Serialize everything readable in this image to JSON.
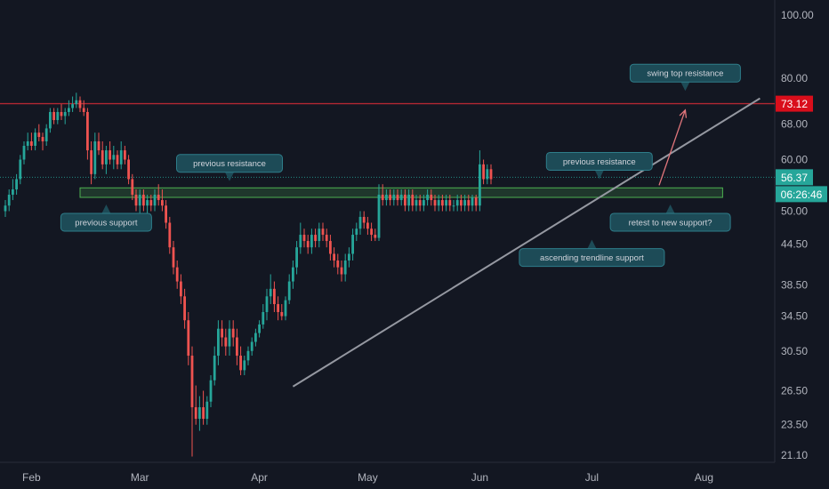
{
  "chart_data": {
    "type": "candlestick",
    "y_scale": "log",
    "grid": false,
    "y_axis_ticks": [
      "100.00",
      "80.00",
      "68.00",
      "60.00",
      "50.00",
      "44.50",
      "38.50",
      "34.50",
      "30.50",
      "26.50",
      "23.50",
      "21.10"
    ],
    "x_axis_ticks": [
      "Feb",
      "Mar",
      "Apr",
      "May",
      "Jun",
      "Jul",
      "Aug"
    ],
    "tags": {
      "resistance_price": "73.12",
      "last_price": "56.37",
      "countdown": "06:26:46"
    },
    "levels": {
      "resistance": 73.12,
      "last_price": 56.37,
      "support_zone_low": 52.5,
      "support_zone_high": 54.3
    },
    "trendline": {
      "from": [
        "2021-03-19",
        26.9
      ],
      "to": [
        "2021-07-22",
        74.5
      ]
    },
    "arrow": {
      "from": [
        "2021-06-25",
        54.8
      ],
      "to": [
        "2021-07-02",
        71.5
      ]
    },
    "annotations": [
      {
        "text": "swing top resistance",
        "date": "2021-07-02",
        "price": 76.5,
        "side": "above"
      },
      {
        "text": "previous resistance",
        "date": "2021-03-02",
        "price": 55.6,
        "side": "above"
      },
      {
        "text": "previous resistance",
        "date": "2021-06-09",
        "price": 56.0,
        "side": "above"
      },
      {
        "text": "previous support",
        "date": "2021-01-28",
        "price": 51.2,
        "side": "below"
      },
      {
        "text": "retest to new support?",
        "date": "2021-06-28",
        "price": 51.2,
        "side": "below"
      },
      {
        "text": "ascending trendline support",
        "date": "2021-06-07",
        "price": 45.2,
        "side": "below"
      }
    ],
    "ohlc": [
      [
        "2021-01-01",
        50,
        52,
        49,
        51
      ],
      [
        "2021-01-02",
        51,
        54,
        50,
        53
      ],
      [
        "2021-01-03",
        53,
        56,
        52,
        54
      ],
      [
        "2021-01-04",
        54,
        57,
        53,
        56
      ],
      [
        "2021-01-05",
        56,
        61,
        55,
        60
      ],
      [
        "2021-01-06",
        60,
        64,
        59,
        63
      ],
      [
        "2021-01-07",
        63,
        66,
        62,
        64
      ],
      [
        "2021-01-08",
        64,
        66,
        62,
        63
      ],
      [
        "2021-01-09",
        63,
        67,
        62,
        66
      ],
      [
        "2021-01-10",
        66,
        68,
        64,
        65
      ],
      [
        "2021-01-11",
        65,
        66,
        62,
        64
      ],
      [
        "2021-01-12",
        64,
        68,
        63,
        67
      ],
      [
        "2021-01-13",
        67,
        72,
        66,
        71
      ],
      [
        "2021-01-14",
        71,
        72,
        68,
        69
      ],
      [
        "2021-01-15",
        69,
        72,
        68,
        71
      ],
      [
        "2021-01-16",
        71,
        73,
        69,
        70
      ],
      [
        "2021-01-17",
        70,
        72,
        68,
        71
      ],
      [
        "2021-01-18",
        71,
        74,
        70,
        72
      ],
      [
        "2021-01-19",
        72,
        75,
        71,
        73
      ],
      [
        "2021-01-20",
        73,
        76,
        72,
        74
      ],
      [
        "2021-01-21",
        74,
        75,
        71,
        72
      ],
      [
        "2021-01-22",
        72,
        74,
        70,
        71
      ],
      [
        "2021-01-23",
        71,
        72,
        60,
        62
      ],
      [
        "2021-01-24",
        62,
        64,
        55,
        57
      ],
      [
        "2021-01-25",
        57,
        66,
        56,
        64
      ],
      [
        "2021-01-26",
        64,
        66,
        61,
        62
      ],
      [
        "2021-01-27",
        62,
        64,
        58,
        59
      ],
      [
        "2021-01-28",
        59,
        63,
        57,
        62
      ],
      [
        "2021-01-29",
        62,
        64,
        59,
        60
      ],
      [
        "2021-01-30",
        60,
        63,
        58,
        61
      ],
      [
        "2021-01-31",
        61,
        62,
        58,
        59
      ],
      [
        "2021-02-01",
        59,
        64,
        58,
        62
      ],
      [
        "2021-02-02",
        62,
        63,
        59,
        60
      ],
      [
        "2021-02-03",
        60,
        61,
        55,
        56
      ],
      [
        "2021-02-04",
        56,
        57,
        52,
        53
      ],
      [
        "2021-02-05",
        53,
        54,
        50,
        51
      ],
      [
        "2021-02-06",
        51,
        54,
        49,
        53
      ],
      [
        "2021-02-07",
        53,
        54,
        50,
        51
      ],
      [
        "2021-02-08",
        51,
        53,
        49,
        52
      ],
      [
        "2021-02-09",
        52,
        53,
        50,
        51
      ],
      [
        "2021-02-10",
        51,
        54,
        50,
        53
      ],
      [
        "2021-02-11",
        53,
        55,
        51,
        52
      ],
      [
        "2021-02-12",
        52,
        54,
        50,
        51
      ],
      [
        "2021-02-13",
        51,
        52,
        47,
        48
      ],
      [
        "2021-02-14",
        48,
        49,
        43,
        44
      ],
      [
        "2021-02-15",
        44,
        45,
        40,
        41
      ],
      [
        "2021-02-16",
        41,
        42,
        38,
        39
      ],
      [
        "2021-02-17",
        39,
        40,
        36,
        37
      ],
      [
        "2021-02-18",
        37,
        38,
        33,
        34
      ],
      [
        "2021-02-19",
        34,
        35,
        29,
        30
      ],
      [
        "2021-02-20",
        30,
        31,
        21,
        25
      ],
      [
        "2021-02-21",
        25,
        27,
        23.5,
        24
      ],
      [
        "2021-02-22",
        24,
        26,
        23,
        25
      ],
      [
        "2021-02-23",
        25,
        26.5,
        23.5,
        24
      ],
      [
        "2021-02-24",
        24,
        26,
        23.5,
        25.5
      ],
      [
        "2021-02-25",
        25.5,
        28,
        25,
        27.5
      ],
      [
        "2021-02-26",
        27.5,
        31,
        27,
        30
      ],
      [
        "2021-02-27",
        30,
        34,
        29,
        33
      ],
      [
        "2021-02-28",
        33,
        34,
        31,
        32
      ],
      [
        "2021-03-01",
        32,
        33,
        30,
        31
      ],
      [
        "2021-03-02",
        31,
        34,
        30,
        33
      ],
      [
        "2021-03-03",
        33,
        34,
        31,
        32
      ],
      [
        "2021-03-04",
        32,
        33,
        29,
        30
      ],
      [
        "2021-03-05",
        30,
        31,
        28,
        28.5
      ],
      [
        "2021-03-06",
        28.5,
        30,
        28,
        29.5
      ],
      [
        "2021-03-07",
        29.5,
        31,
        29,
        30.5
      ],
      [
        "2021-03-08",
        30.5,
        32,
        30,
        31.5
      ],
      [
        "2021-03-09",
        31.5,
        33,
        31,
        32.5
      ],
      [
        "2021-03-10",
        32.5,
        34,
        32,
        33.5
      ],
      [
        "2021-03-11",
        33.5,
        36,
        33,
        35
      ],
      [
        "2021-03-12",
        35,
        38,
        34,
        37
      ],
      [
        "2021-03-13",
        37,
        40,
        36,
        38
      ],
      [
        "2021-03-14",
        38,
        39,
        35,
        36
      ],
      [
        "2021-03-15",
        36,
        37,
        34,
        35
      ],
      [
        "2021-03-16",
        35,
        36,
        34,
        34.5
      ],
      [
        "2021-03-17",
        34.5,
        37,
        34,
        36.5
      ],
      [
        "2021-03-18",
        36.5,
        40,
        36,
        39
      ],
      [
        "2021-03-19",
        39,
        42,
        38,
        41
      ],
      [
        "2021-03-20",
        41,
        45,
        40,
        44
      ],
      [
        "2021-03-21",
        44,
        48,
        43,
        46
      ],
      [
        "2021-03-22",
        46,
        47,
        44,
        45
      ],
      [
        "2021-03-23",
        45,
        46,
        43,
        44
      ],
      [
        "2021-03-24",
        44,
        47,
        43,
        46
      ],
      [
        "2021-03-25",
        46,
        47,
        44,
        45
      ],
      [
        "2021-03-26",
        45,
        48,
        44,
        47
      ],
      [
        "2021-03-27",
        47,
        48,
        45,
        46
      ],
      [
        "2021-03-28",
        46,
        47,
        44,
        45
      ],
      [
        "2021-03-29",
        45,
        46,
        42,
        43
      ],
      [
        "2021-03-30",
        43,
        44,
        41,
        42
      ],
      [
        "2021-03-31",
        42,
        43,
        40,
        41
      ],
      [
        "2021-04-01",
        41,
        42,
        39,
        40
      ],
      [
        "2021-04-02",
        40,
        43,
        39,
        42
      ],
      [
        "2021-04-03",
        42,
        44,
        41,
        43
      ],
      [
        "2021-04-04",
        43,
        47,
        42,
        46
      ],
      [
        "2021-04-05",
        46,
        48,
        45,
        47
      ],
      [
        "2021-04-06",
        47,
        50,
        46,
        49
      ],
      [
        "2021-04-07",
        49,
        50,
        47,
        48
      ],
      [
        "2021-04-08",
        48,
        49,
        46,
        47
      ],
      [
        "2021-04-09",
        47,
        48,
        45,
        46
      ],
      [
        "2021-04-10",
        46,
        47,
        45,
        45.5
      ],
      [
        "2021-04-11",
        45.5,
        55,
        45,
        53
      ],
      [
        "2021-04-12",
        53,
        55,
        51,
        52
      ],
      [
        "2021-04-13",
        52,
        54,
        51,
        53
      ],
      [
        "2021-04-14",
        53,
        54,
        51,
        52
      ],
      [
        "2021-04-15",
        52,
        54,
        51,
        53
      ],
      [
        "2021-04-16",
        53,
        54,
        51,
        52
      ],
      [
        "2021-04-17",
        52,
        54,
        51,
        53
      ],
      [
        "2021-04-18",
        53,
        54,
        50,
        51
      ],
      [
        "2021-04-19",
        51,
        54,
        50,
        53
      ],
      [
        "2021-04-20",
        53,
        54,
        50,
        51
      ],
      [
        "2021-04-21",
        51,
        53,
        50,
        52
      ],
      [
        "2021-04-22",
        52,
        53,
        50,
        51
      ],
      [
        "2021-04-23",
        51,
        53,
        50,
        52
      ],
      [
        "2021-04-24",
        52,
        54,
        51,
        53
      ],
      [
        "2021-04-25",
        53,
        54,
        51,
        52
      ],
      [
        "2021-04-26",
        52,
        53,
        50,
        51
      ],
      [
        "2021-04-27",
        51,
        53,
        50,
        52
      ],
      [
        "2021-04-28",
        52,
        53,
        50,
        51
      ],
      [
        "2021-04-29",
        51,
        53,
        50,
        52
      ],
      [
        "2021-04-30",
        52,
        53,
        50,
        51
      ],
      [
        "2021-05-01",
        51,
        52,
        50,
        51
      ],
      [
        "2021-05-02",
        51,
        53,
        50,
        52
      ],
      [
        "2021-05-03",
        52,
        53,
        50,
        51
      ],
      [
        "2021-05-04",
        51,
        53,
        50,
        52
      ],
      [
        "2021-05-05",
        52,
        53,
        50,
        51
      ],
      [
        "2021-05-06",
        51,
        53,
        50,
        52.5
      ],
      [
        "2021-05-07",
        52.5,
        53,
        50,
        51
      ],
      [
        "2021-05-08",
        51,
        62,
        50,
        59
      ],
      [
        "2021-05-09",
        59,
        60,
        55,
        56
      ],
      [
        "2021-05-10",
        56,
        59,
        55,
        58
      ],
      [
        "2021-05-11",
        58,
        59,
        55,
        56
      ]
    ]
  }
}
